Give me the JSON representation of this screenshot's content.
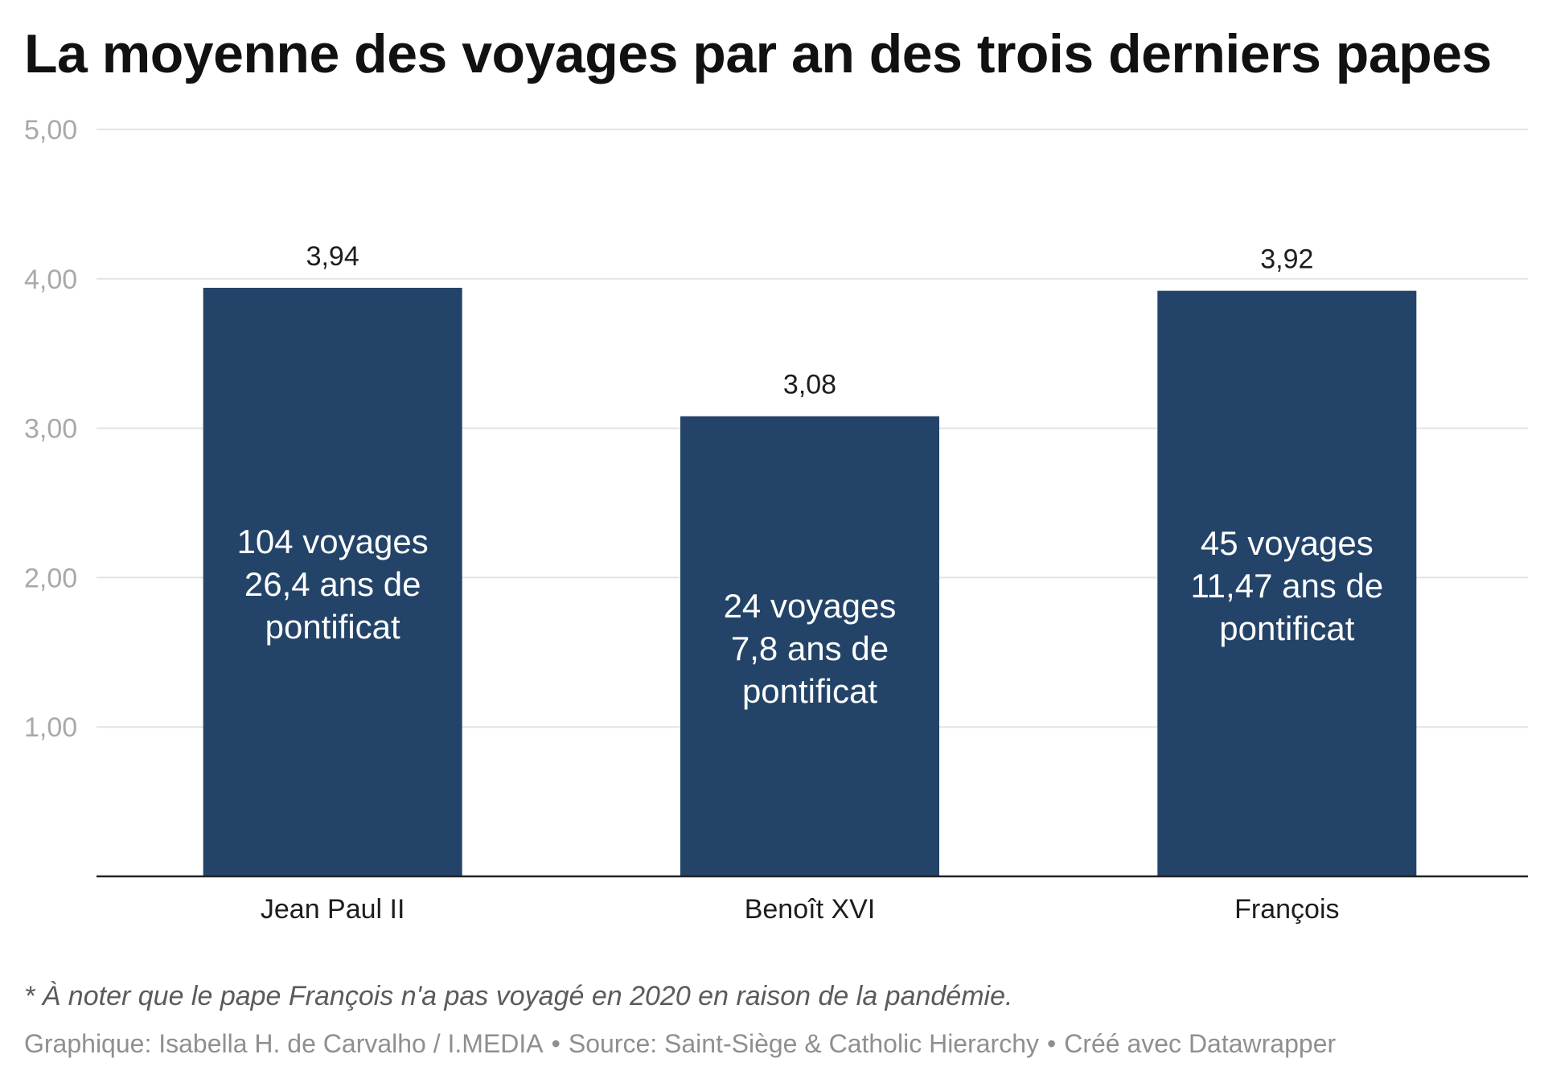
{
  "chart_data": {
    "type": "bar",
    "title": "La moyenne des voyages par an des trois derniers papes",
    "categories": [
      "Jean Paul II",
      "Benoît XVI",
      "François"
    ],
    "values": [
      3.94,
      3.08,
      3.92
    ],
    "value_labels": [
      "3,94",
      "3,08",
      "3,92"
    ],
    "bar_annotations": [
      [
        "104 voyages",
        "26,4 ans de",
        "pontificat"
      ],
      [
        "24 voyages",
        "7,8 ans de",
        "pontificat"
      ],
      [
        "45 voyages",
        "11,47 ans de",
        "pontificat"
      ]
    ],
    "ylim": [
      0,
      5
    ],
    "yticks": [
      1,
      2,
      3,
      4,
      5
    ],
    "ytick_labels": [
      "1,00",
      "2,00",
      "3,00",
      "4,00",
      "5,00"
    ],
    "xlabel": "",
    "ylabel": "",
    "grid": true,
    "legend": "none",
    "bar_color": "#234468"
  },
  "note": "* À noter que le pape François n'a pas voyagé en 2020 en raison de la pandémie.",
  "footer": {
    "graphic": "Graphique: Isabella H. de Carvalho / I.MEDIA",
    "separator": "•",
    "source": "Source: Saint-Siège & Catholic Hierarchy",
    "created": "Créé avec Datawrapper"
  }
}
